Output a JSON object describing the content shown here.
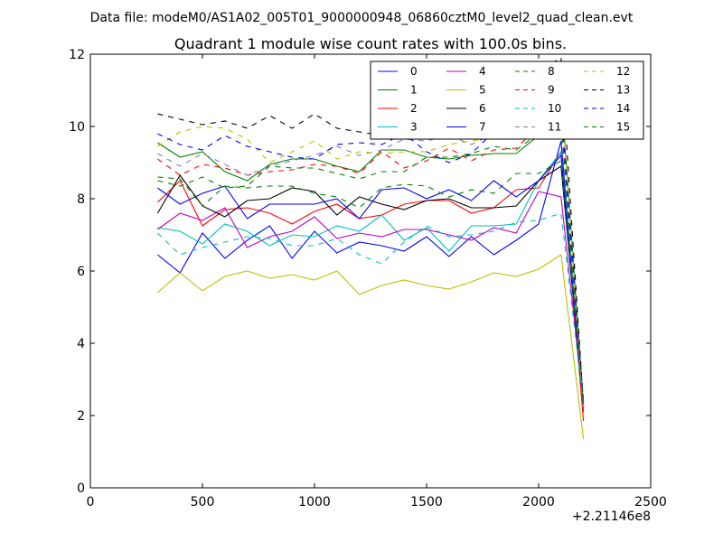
{
  "figure": {
    "suptitle": "Data file: modeM0/AS1A02_005T01_9000000948_06860cztM0_level2_quad_clean.evt"
  },
  "chart_data": {
    "type": "line",
    "title": "Quadrant 1 module wise count rates with 100.0s bins.",
    "xlabel": "",
    "ylabel": "",
    "xlim": [
      0,
      2500
    ],
    "ylim": [
      0,
      12
    ],
    "x_offset_label": "+2.21146e8",
    "xticks": [
      0,
      500,
      1000,
      1500,
      2000,
      2500
    ],
    "yticks": [
      0,
      2,
      4,
      6,
      8,
      10,
      12
    ],
    "grid": false,
    "legend_position": "top-right",
    "x": [
      300,
      400,
      500,
      600,
      700,
      800,
      900,
      1000,
      1100,
      1200,
      1300,
      1400,
      1500,
      1600,
      1700,
      1800,
      1900,
      2000,
      2100,
      2200
    ],
    "series": [
      {
        "name": "0",
        "color": "#0000ff",
        "dash": "solid",
        "values": [
          6.45,
          5.95,
          7.05,
          6.35,
          6.85,
          7.25,
          6.35,
          7.1,
          6.5,
          6.8,
          6.7,
          6.55,
          6.95,
          6.4,
          6.95,
          6.45,
          6.85,
          7.3,
          9.6,
          2.2
        ]
      },
      {
        "name": "1",
        "color": "#008000",
        "dash": "solid",
        "values": [
          9.55,
          9.15,
          9.3,
          8.75,
          8.5,
          8.95,
          9.1,
          9.1,
          8.9,
          8.75,
          9.35,
          9.35,
          9.15,
          9.1,
          9.2,
          9.25,
          9.25,
          9.75,
          11.0,
          2.3
        ]
      },
      {
        "name": "2",
        "color": "#ff0000",
        "dash": "solid",
        "values": [
          7.9,
          8.5,
          7.25,
          7.7,
          7.75,
          7.6,
          7.3,
          7.65,
          7.85,
          7.45,
          7.55,
          7.85,
          7.95,
          7.95,
          7.6,
          7.75,
          8.25,
          8.3,
          9.3,
          1.85
        ]
      },
      {
        "name": "3",
        "color": "#00bfbf",
        "dash": "solid",
        "values": [
          7.2,
          7.1,
          6.75,
          7.3,
          7.1,
          6.7,
          7.0,
          6.95,
          7.25,
          7.1,
          7.55,
          6.85,
          7.2,
          6.55,
          7.25,
          7.25,
          7.3,
          8.5,
          9.3,
          2.4
        ]
      },
      {
        "name": "4",
        "color": "#bf00bf",
        "dash": "solid",
        "values": [
          7.15,
          7.6,
          7.4,
          7.75,
          6.65,
          6.95,
          7.1,
          7.5,
          6.9,
          7.05,
          6.95,
          7.15,
          7.15,
          7.0,
          6.85,
          7.2,
          7.05,
          8.2,
          8.05,
          2.3
        ]
      },
      {
        "name": "5",
        "color": "#bfbf00",
        "dash": "solid",
        "values": [
          5.4,
          5.95,
          5.45,
          5.85,
          6.0,
          5.8,
          5.9,
          5.75,
          6.0,
          5.35,
          5.6,
          5.75,
          5.6,
          5.5,
          5.7,
          5.95,
          5.85,
          6.05,
          6.45,
          1.35
        ]
      },
      {
        "name": "6",
        "color": "#000000",
        "dash": "solid",
        "values": [
          7.6,
          8.65,
          7.8,
          7.5,
          7.95,
          8.0,
          8.3,
          8.2,
          7.55,
          8.05,
          7.85,
          7.7,
          7.95,
          8.0,
          7.75,
          7.75,
          7.8,
          8.5,
          8.9,
          2.25
        ]
      },
      {
        "name": "7",
        "color": "#0000ff",
        "dash": "solid",
        "values": [
          8.3,
          7.85,
          8.15,
          8.35,
          7.45,
          7.85,
          7.85,
          7.85,
          8.0,
          7.45,
          8.25,
          8.3,
          8.0,
          8.25,
          7.95,
          8.5,
          8.05,
          8.5,
          9.2,
          2.2
        ]
      },
      {
        "name": "8",
        "color": "#008000",
        "dash": "dashed",
        "values": [
          8.6,
          8.55,
          7.8,
          8.35,
          8.3,
          8.35,
          8.35,
          8.15,
          8.05,
          7.75,
          8.3,
          8.4,
          8.35,
          8.05,
          8.25,
          8.15,
          8.7,
          8.7,
          9.05,
          2.3
        ]
      },
      {
        "name": "9",
        "color": "#ff0000",
        "dash": "dashed",
        "values": [
          9.1,
          8.65,
          8.95,
          8.85,
          8.65,
          8.75,
          8.8,
          8.95,
          8.9,
          8.7,
          9.3,
          8.85,
          9.05,
          9.4,
          9.05,
          9.35,
          9.4,
          10.0,
          10.2,
          2.1
        ]
      },
      {
        "name": "10",
        "color": "#00bfbf",
        "dash": "dashed",
        "values": [
          7.05,
          6.45,
          6.65,
          6.8,
          6.95,
          6.9,
          6.7,
          6.7,
          6.9,
          6.45,
          6.2,
          6.8,
          7.25,
          6.95,
          7.0,
          7.1,
          7.35,
          7.4,
          7.6,
          2.3
        ]
      },
      {
        "name": "11",
        "color": "#7f7fbf",
        "dash": "dashed",
        "values": [
          9.25,
          8.9,
          9.25,
          8.95,
          8.65,
          8.9,
          9.05,
          9.2,
          9.45,
          9.2,
          9.35,
          9.65,
          9.6,
          9.75,
          9.5,
          9.8,
          10.25,
          10.0,
          11.0,
          2.1
        ]
      },
      {
        "name": "12",
        "color": "#bfbf00",
        "dash": "dashed",
        "values": [
          9.45,
          9.85,
          10.0,
          9.95,
          9.65,
          9.0,
          9.3,
          9.6,
          9.1,
          9.3,
          9.25,
          9.3,
          9.3,
          9.5,
          9.6,
          9.7,
          10.25,
          10.6,
          10.9,
          2.25
        ]
      },
      {
        "name": "13",
        "color": "#000000",
        "dash": "dashed",
        "values": [
          10.35,
          10.2,
          10.05,
          10.15,
          9.95,
          10.3,
          9.95,
          10.35,
          9.95,
          9.85,
          9.75,
          10.05,
          11.0,
          10.75,
          11.15,
          11.1,
          11.35,
          11.55,
          11.9,
          2.3
        ]
      },
      {
        "name": "14",
        "color": "#0000ff",
        "dash": "dashed",
        "values": [
          9.8,
          9.5,
          9.35,
          9.75,
          9.45,
          9.3,
          9.15,
          9.1,
          9.5,
          9.55,
          9.5,
          9.8,
          9.3,
          9.0,
          9.25,
          9.85,
          10.2,
          10.25,
          10.55,
          2.4
        ]
      },
      {
        "name": "15",
        "color": "#008000",
        "dash": "dashed",
        "values": [
          8.5,
          8.35,
          8.6,
          8.3,
          8.35,
          8.9,
          8.85,
          8.85,
          8.7,
          8.55,
          8.75,
          8.75,
          9.15,
          9.15,
          9.25,
          9.45,
          9.35,
          9.8,
          10.05,
          2.35
        ]
      }
    ]
  }
}
